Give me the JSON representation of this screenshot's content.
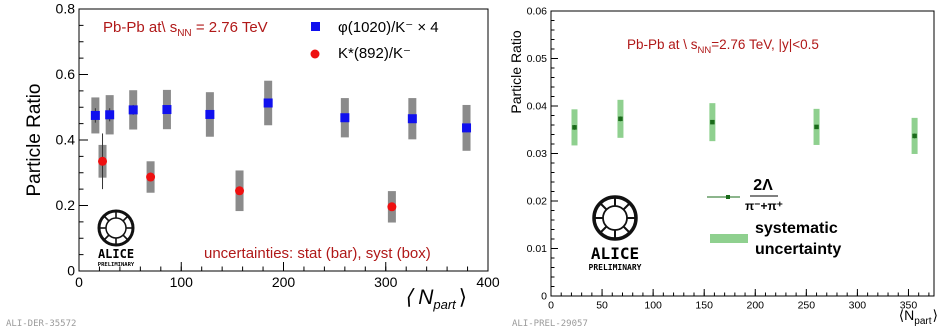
{
  "chart_data": [
    {
      "type": "scatter",
      "xlabel_main": "⟨ N",
      "xlabel_sub": "part",
      "xlabel_end": "⟩",
      "ylabel": "Particle Ratio",
      "xlim": [
        0,
        400
      ],
      "ylim": [
        0,
        0.8
      ],
      "xticks": [
        "0",
        "100",
        "200",
        "300",
        "400"
      ],
      "yticks": [
        "0",
        "0.2",
        "0.4",
        "0.6",
        "0.8"
      ],
      "annotation_main": "Pb-Pb at\\ s",
      "annotation_sub": "NN",
      "annotation_end": " = 2.76 TeV",
      "footer_note": "uncertainties: stat (bar), syst (box)",
      "watermark": "ALI-DER-35572",
      "logo": {
        "name": "ALICE",
        "subtitle": "PRELIMINARY"
      },
      "series": [
        {
          "name": "φ(1020)/K⁻ × 4",
          "marker": "square",
          "color": "#1010ee",
          "x": [
            16,
            30,
            53,
            86,
            128,
            185,
            260,
            326,
            379
          ],
          "y": [
            0.475,
            0.477,
            0.492,
            0.493,
            0.478,
            0.513,
            0.468,
            0.465,
            0.437
          ],
          "stat": [
            0.022,
            0.02,
            0.015,
            0.013,
            0.012,
            0.012,
            0.012,
            0.013,
            0.013
          ],
          "syst": [
            0.055,
            0.06,
            0.06,
            0.06,
            0.068,
            0.068,
            0.06,
            0.063,
            0.07
          ]
        },
        {
          "name": "K*(892)/K⁻",
          "marker": "circle",
          "color": "#ee1010",
          "x": [
            23,
            70,
            157,
            306
          ],
          "y": [
            0.335,
            0.287,
            0.245,
            0.196
          ],
          "stat": [
            0.085,
            0.013,
            0.012,
            0.01
          ],
          "syst": [
            0.05,
            0.048,
            0.062,
            0.048
          ]
        }
      ]
    },
    {
      "type": "scatter",
      "xlabel_main": "⟨N",
      "xlabel_sub": "part",
      "xlabel_end": "⟩",
      "ylabel": "Particle Ratio",
      "xlim": [
        0,
        375
      ],
      "ylim": [
        0,
        0.06
      ],
      "xticks": [
        "0",
        "50",
        "100",
        "150",
        "200",
        "250",
        "300",
        "350"
      ],
      "yticks": [
        "0",
        "0.01",
        "0.02",
        "0.03",
        "0.04",
        "0.05",
        "0.06"
      ],
      "annotation": "Pb-Pb at \\ s",
      "annotation_sub": "NN",
      "annotation_end": "=2.76 TeV, |y|<0.5",
      "watermark": "ALI-PREL-29057",
      "logo": {
        "name": "ALICE",
        "subtitle": "PRELIMINARY"
      },
      "legend": {
        "ratio_num": "2Λ",
        "ratio_den": "π⁻+π⁺",
        "syst_label_1": "systematic",
        "syst_label_2": "uncertainty"
      },
      "series": [
        {
          "name": "2Λ/(π⁻+π⁺)",
          "marker": "square",
          "color": "#1a6b1a",
          "syst_color": "#8fd08f",
          "x": [
            23,
            68,
            158,
            260,
            356
          ],
          "y": [
            0.0355,
            0.0373,
            0.0366,
            0.0356,
            0.0337
          ],
          "stat": [
            0.0005,
            0.0005,
            0.0004,
            0.0004,
            0.0005
          ],
          "syst": [
            0.0038,
            0.004,
            0.004,
            0.0038,
            0.0038
          ]
        }
      ]
    }
  ]
}
